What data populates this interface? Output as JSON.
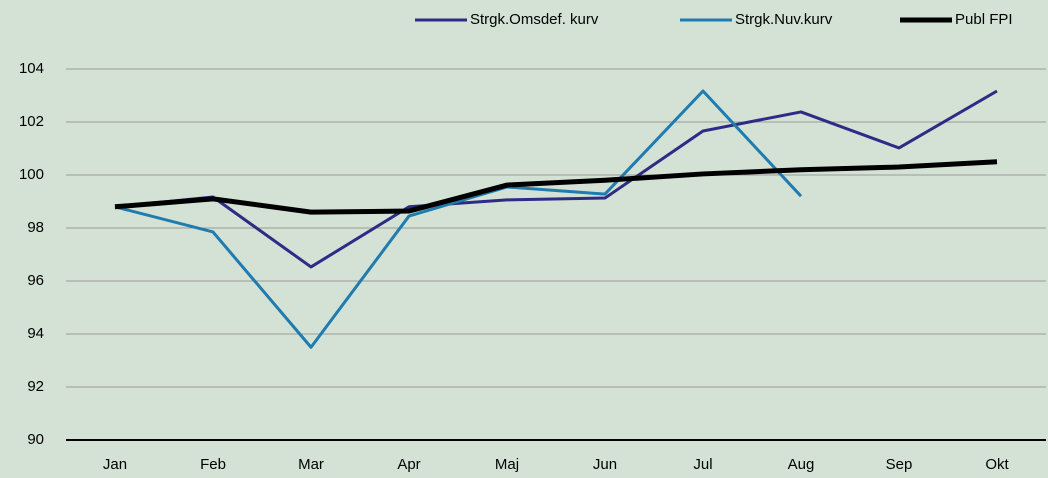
{
  "chart_data": {
    "type": "line",
    "categories": [
      "Jan",
      "Feb",
      "Mar",
      "Apr",
      "Maj",
      "Jun",
      "Jul",
      "Aug",
      "Sep",
      "Okt"
    ],
    "series": [
      {
        "name": "Strgk.Omsdef. kurv",
        "color": "#2e2a86",
        "values": [
          98.8,
          99.17,
          96.53,
          98.8,
          99.06,
          99.13,
          101.66,
          102.38,
          101.02,
          103.17
        ]
      },
      {
        "name": "Strgk.Nuv.kurv",
        "color": "#1f7bb0",
        "values": [
          98.8,
          97.85,
          93.5,
          98.45,
          99.55,
          99.28,
          103.17,
          99.2,
          null,
          null
        ]
      },
      {
        "name": "Publ FPI",
        "color": "#000000",
        "values": [
          98.8,
          99.1,
          98.6,
          98.64,
          99.62,
          99.8,
          100.04,
          100.2,
          100.3,
          100.5
        ]
      }
    ],
    "ylim": [
      90,
      105
    ],
    "yticks": [
      90,
      92,
      94,
      96,
      98,
      100,
      102,
      104
    ],
    "grid": true,
    "legend": "top-right"
  }
}
